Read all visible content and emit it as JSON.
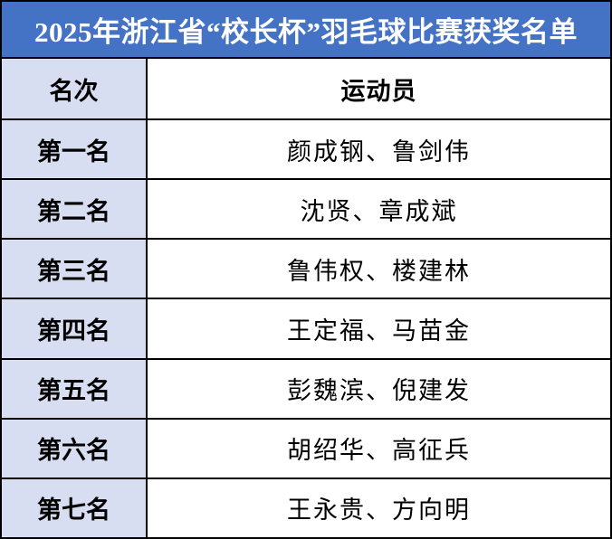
{
  "title": "2025年浙江省“校长杯”羽毛球比赛获奖名单",
  "table": {
    "headers": {
      "rank": "名次",
      "athletes": "运动员"
    },
    "rows": [
      {
        "rank": "第一名",
        "athletes": "颜成钢、鲁剑伟"
      },
      {
        "rank": "第二名",
        "athletes": "沈贤、章成斌"
      },
      {
        "rank": "第三名",
        "athletes": "鲁伟权、楼建林"
      },
      {
        "rank": "第四名",
        "athletes": "王定福、马苗金"
      },
      {
        "rank": "第五名",
        "athletes": "彭魏滨、倪建发"
      },
      {
        "rank": "第六名",
        "athletes": "胡绍华、高征兵"
      },
      {
        "rank": "第七名",
        "athletes": "王永贵、方向明"
      }
    ]
  },
  "colors": {
    "banner_background": "#4472C4",
    "banner_text": "#FFFFFF",
    "rank_column_fill": "#D8DEF1",
    "athlete_cell_fill": "#FFFFFF",
    "grid_border": "#000000",
    "body_text": "#000000"
  }
}
